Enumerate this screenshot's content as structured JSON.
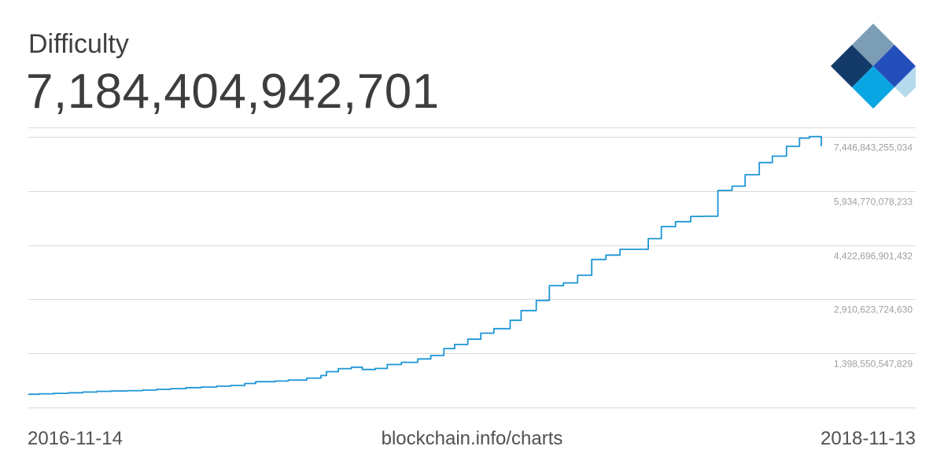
{
  "header": {
    "title": "Difficulty",
    "current_value": "7,184,404,942,701"
  },
  "footer": {
    "start_date": "2016-11-14",
    "source": "blockchain.info/charts",
    "end_date": "2018-11-13"
  },
  "logo": {
    "icon": "blockchain-logo-icon"
  },
  "colors": {
    "line": "#1b96d6",
    "grid": "#d9d9d9",
    "logo_dark": "#133a69",
    "logo_gray": "#7b9db6",
    "logo_blue": "#244fbb",
    "logo_cyan": "#0aa6e3",
    "logo_light": "#b6daed"
  },
  "chart_data": {
    "type": "line",
    "title": "Difficulty",
    "x_range": [
      "2016-11-14",
      "2018-11-13"
    ],
    "yticks": [
      {
        "value": 1398550547829,
        "label": "1,398,550,547,829"
      },
      {
        "value": 2910623724630,
        "label": "2,910,623,724,630"
      },
      {
        "value": 4422696901432,
        "label": "4,422,696,901,432"
      },
      {
        "value": 5934770078233,
        "label": "5,934,770,078,233"
      },
      {
        "value": 7446843255034,
        "label": "7,446,843,255,034"
      }
    ],
    "ylim": [
      -113522629000,
      7710000000000
    ],
    "grid": true,
    "series": [
      {
        "x": [
          "2016-11-14",
          "2016-11-24",
          "2016-12-07",
          "2016-12-21",
          "2017-01-03",
          "2017-01-16",
          "2017-01-29",
          "2017-02-13",
          "2017-02-27",
          "2017-03-12",
          "2017-03-25",
          "2017-04-08",
          "2017-04-22",
          "2017-05-06",
          "2017-05-19",
          "2017-06-01",
          "2017-06-11",
          "2017-06-29",
          "2017-07-11",
          "2017-07-28",
          "2017-08-10",
          "2017-08-15",
          "2017-08-26",
          "2017-09-07",
          "2017-09-17",
          "2017-09-29",
          "2017-10-10",
          "2017-10-23",
          "2017-11-07",
          "2017-11-19",
          "2017-12-01",
          "2017-12-11",
          "2017-12-23",
          "2018-01-04",
          "2018-01-16",
          "2018-01-31",
          "2018-02-10",
          "2018-02-24",
          "2018-03-08",
          "2018-03-21",
          "2018-04-03",
          "2018-04-16",
          "2018-04-29",
          "2018-05-12",
          "2018-05-25",
          "2018-06-07",
          "2018-06-19",
          "2018-07-02",
          "2018-07-16",
          "2018-07-28",
          "2018-08-10",
          "2018-08-23",
          "2018-09-04",
          "2018-09-17",
          "2018-09-29",
          "2018-10-12",
          "2018-10-24",
          "2018-11-02",
          "2018-11-13"
        ],
        "values": [
          254600000000.0,
          269300000000.0,
          282500000000.0,
          298400000000.0,
          318100000000.0,
          336800000000.0,
          347500000000.0,
          356400000000.0,
          371600000000.0,
          393400000000.0,
          414300000000.0,
          439500000000.0,
          458500000000.0,
          482700000000.0,
          501800000000.0,
          557600000000.0,
          608100000000.0,
          625700000000.0,
          654300000000.0,
          708700000000.0,
          778500000000.0,
          886500000000.0,
          971200000000.0,
          1010900000000.0,
          948900000000.0,
          976400000000.0,
          1086800000000.0,
          1148100000000.0,
          1243500000000.0,
          1340100000000.0,
          1531800000000.0,
          1645700000000.0,
          1795000000000.0,
          1962400000000.0,
          2088500000000.0,
          2320400000000.0,
          2593200000000.0,
          2874400000000.0,
          3290600000000.0,
          3367800000000.0,
          3580400000000.0,
          4022600000000.0,
          4143000000000.0,
          4305800000000.0,
          4306900000000.0,
          4603600000000.0,
          4940600000000.0,
          5077800000000.0,
          5224100000000.0,
          5229900000000.0,
          5949200000000.0,
          6071600000000.0,
          6389300000000.0,
          6727200000000.0,
          6908600000000.0,
          7182000000000.0,
          7410400000000.0,
          7454000000000.0,
          7184400000000.0
        ]
      }
    ]
  }
}
